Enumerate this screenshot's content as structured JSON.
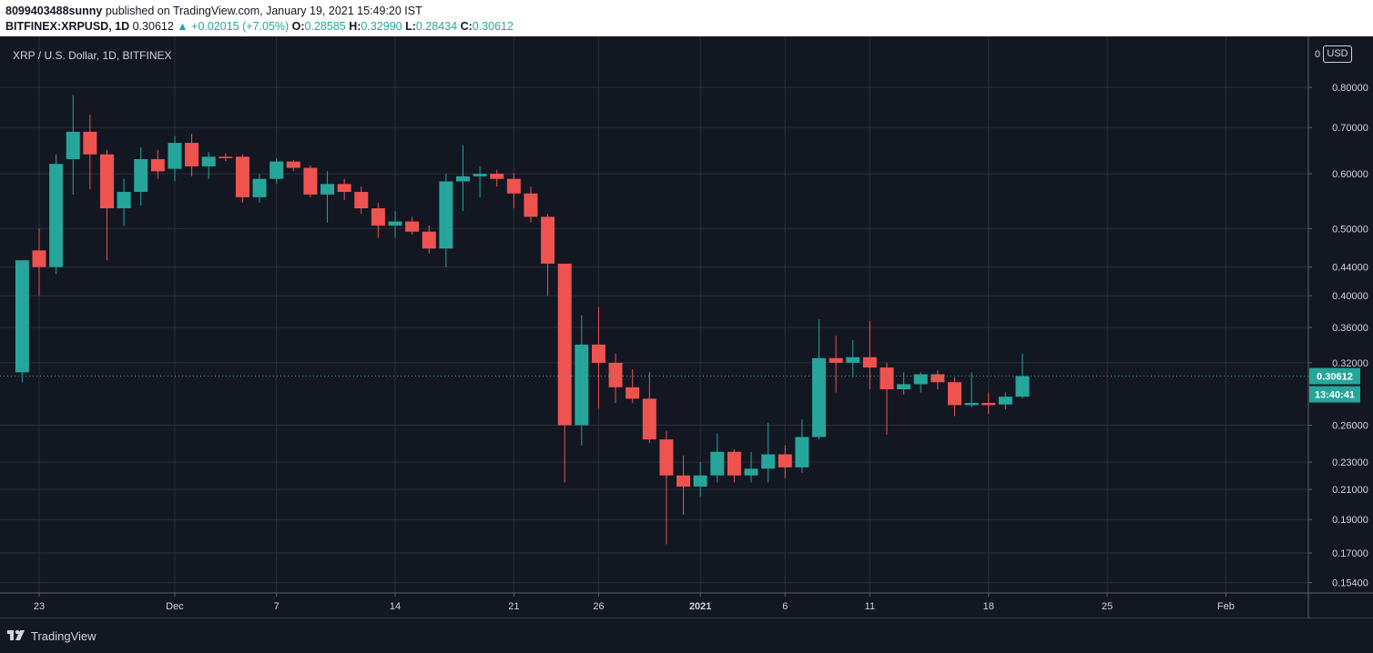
{
  "header": {
    "author": "8099403488sunny",
    "published_text": " published on TradingView.com, January 19, 2021 15:49:20 IST",
    "symbol": "BITFINEX:XRPUSD, 1D",
    "last": "0.30612",
    "change": "▲ +0.02015 (+7.05%)",
    "o_label": "O:",
    "o": "0.28585",
    "h_label": "H:",
    "h": "0.32990",
    "l_label": "L:",
    "l": "0.28434",
    "c_label": "C:",
    "c": "0.30612"
  },
  "legend": "XRP / U.S. Dollar, 1D, BITFINEX",
  "currency_button": "USD",
  "price_label": "0.30612",
  "countdown_label": "13:40:41",
  "footer": {
    "brand": "TradingView"
  },
  "colors": {
    "up": "#26a69a",
    "down": "#ef5350",
    "background": "#131722",
    "grid": "#2a2e39",
    "text": "#d1d4dc"
  },
  "chart_data": {
    "type": "candlestick",
    "title": "XRP / U.S. Dollar, 1D, BITFINEX",
    "y_scale": "log",
    "y_ticks": [
      "0.80000",
      "0.70000",
      "0.60000",
      "0.50000",
      "0.44000",
      "0.40000",
      "0.36000",
      "0.32000",
      "0.26000",
      "0.23000",
      "0.21000",
      "0.19000",
      "0.17000",
      "0.15400"
    ],
    "x_ticks": [
      "23",
      "Dec",
      "7",
      "14",
      "21",
      "26",
      "2021",
      "6",
      "11",
      "18",
      "25",
      "Feb"
    ],
    "grid": true,
    "current_price": 0.30612,
    "candles": [
      {
        "date": "2020-11-22",
        "open": 0.31,
        "high": 0.45,
        "low": 0.3,
        "close": 0.45
      },
      {
        "date": "2020-11-23",
        "open": 0.465,
        "high": 0.5,
        "low": 0.4,
        "close": 0.44
      },
      {
        "date": "2020-11-24",
        "open": 0.44,
        "high": 0.64,
        "low": 0.43,
        "close": 0.62
      },
      {
        "date": "2020-11-25",
        "open": 0.63,
        "high": 0.78,
        "low": 0.56,
        "close": 0.69
      },
      {
        "date": "2020-11-26",
        "open": 0.69,
        "high": 0.73,
        "low": 0.57,
        "close": 0.64
      },
      {
        "date": "2020-11-27",
        "open": 0.64,
        "high": 0.65,
        "low": 0.45,
        "close": 0.535
      },
      {
        "date": "2020-11-28",
        "open": 0.535,
        "high": 0.59,
        "low": 0.505,
        "close": 0.565
      },
      {
        "date": "2020-11-29",
        "open": 0.565,
        "high": 0.655,
        "low": 0.54,
        "close": 0.63
      },
      {
        "date": "2020-11-30",
        "open": 0.63,
        "high": 0.65,
        "low": 0.59,
        "close": 0.605
      },
      {
        "date": "2020-12-01",
        "open": 0.61,
        "high": 0.68,
        "low": 0.585,
        "close": 0.665
      },
      {
        "date": "2020-12-02",
        "open": 0.665,
        "high": 0.685,
        "low": 0.595,
        "close": 0.615
      },
      {
        "date": "2020-12-03",
        "open": 0.615,
        "high": 0.645,
        "low": 0.59,
        "close": 0.635
      },
      {
        "date": "2020-12-04",
        "open": 0.635,
        "high": 0.643,
        "low": 0.626,
        "close": 0.632
      },
      {
        "date": "2020-12-05",
        "open": 0.635,
        "high": 0.64,
        "low": 0.545,
        "close": 0.555
      },
      {
        "date": "2020-12-06",
        "open": 0.555,
        "high": 0.6,
        "low": 0.545,
        "close": 0.59
      },
      {
        "date": "2020-12-07",
        "open": 0.59,
        "high": 0.632,
        "low": 0.58,
        "close": 0.625
      },
      {
        "date": "2020-12-08",
        "open": 0.625,
        "high": 0.628,
        "low": 0.605,
        "close": 0.612
      },
      {
        "date": "2020-12-09",
        "open": 0.612,
        "high": 0.617,
        "low": 0.555,
        "close": 0.56
      },
      {
        "date": "2020-12-10",
        "open": 0.56,
        "high": 0.605,
        "low": 0.51,
        "close": 0.58
      },
      {
        "date": "2020-12-11",
        "open": 0.58,
        "high": 0.59,
        "low": 0.55,
        "close": 0.565
      },
      {
        "date": "2020-12-12",
        "open": 0.565,
        "high": 0.575,
        "low": 0.525,
        "close": 0.535
      },
      {
        "date": "2020-12-13",
        "open": 0.535,
        "high": 0.545,
        "low": 0.485,
        "close": 0.505
      },
      {
        "date": "2020-12-14",
        "open": 0.505,
        "high": 0.53,
        "low": 0.485,
        "close": 0.512
      },
      {
        "date": "2020-12-15",
        "open": 0.512,
        "high": 0.52,
        "low": 0.49,
        "close": 0.495
      },
      {
        "date": "2020-12-16",
        "open": 0.495,
        "high": 0.505,
        "low": 0.46,
        "close": 0.468
      },
      {
        "date": "2020-12-17",
        "open": 0.468,
        "high": 0.6,
        "low": 0.44,
        "close": 0.585
      },
      {
        "date": "2020-12-18",
        "open": 0.585,
        "high": 0.66,
        "low": 0.53,
        "close": 0.595
      },
      {
        "date": "2020-12-19",
        "open": 0.595,
        "high": 0.615,
        "low": 0.555,
        "close": 0.6
      },
      {
        "date": "2020-12-20",
        "open": 0.6,
        "high": 0.608,
        "low": 0.575,
        "close": 0.59
      },
      {
        "date": "2020-12-21",
        "open": 0.59,
        "high": 0.602,
        "low": 0.535,
        "close": 0.562
      },
      {
        "date": "2020-12-22",
        "open": 0.562,
        "high": 0.575,
        "low": 0.51,
        "close": 0.52
      },
      {
        "date": "2020-12-23",
        "open": 0.52,
        "high": 0.525,
        "low": 0.4,
        "close": 0.445
      },
      {
        "date": "2020-12-24",
        "open": 0.445,
        "high": 0.445,
        "low": 0.215,
        "close": 0.26
      },
      {
        "date": "2020-12-25",
        "open": 0.26,
        "high": 0.375,
        "low": 0.243,
        "close": 0.34
      },
      {
        "date": "2020-12-26",
        "open": 0.34,
        "high": 0.385,
        "low": 0.275,
        "close": 0.32
      },
      {
        "date": "2020-12-27",
        "open": 0.32,
        "high": 0.33,
        "low": 0.28,
        "close": 0.295
      },
      {
        "date": "2020-12-28",
        "open": 0.295,
        "high": 0.313,
        "low": 0.28,
        "close": 0.284
      },
      {
        "date": "2020-12-29",
        "open": 0.284,
        "high": 0.31,
        "low": 0.245,
        "close": 0.248
      },
      {
        "date": "2020-12-30",
        "open": 0.248,
        "high": 0.255,
        "low": 0.175,
        "close": 0.22
      },
      {
        "date": "2020-12-31",
        "open": 0.22,
        "high": 0.235,
        "low": 0.193,
        "close": 0.212
      },
      {
        "date": "2021-01-01",
        "open": 0.212,
        "high": 0.23,
        "low": 0.205,
        "close": 0.22
      },
      {
        "date": "2021-01-02",
        "open": 0.22,
        "high": 0.253,
        "low": 0.215,
        "close": 0.238
      },
      {
        "date": "2021-01-03",
        "open": 0.238,
        "high": 0.24,
        "low": 0.215,
        "close": 0.22
      },
      {
        "date": "2021-01-04",
        "open": 0.22,
        "high": 0.238,
        "low": 0.215,
        "close": 0.225
      },
      {
        "date": "2021-01-05",
        "open": 0.225,
        "high": 0.262,
        "low": 0.215,
        "close": 0.236
      },
      {
        "date": "2021-01-06",
        "open": 0.236,
        "high": 0.243,
        "low": 0.218,
        "close": 0.226
      },
      {
        "date": "2021-01-07",
        "open": 0.226,
        "high": 0.265,
        "low": 0.222,
        "close": 0.25
      },
      {
        "date": "2021-01-08",
        "open": 0.25,
        "high": 0.37,
        "low": 0.248,
        "close": 0.325
      },
      {
        "date": "2021-01-09",
        "open": 0.325,
        "high": 0.35,
        "low": 0.29,
        "close": 0.32
      },
      {
        "date": "2021-01-10",
        "open": 0.32,
        "high": 0.345,
        "low": 0.305,
        "close": 0.326
      },
      {
        "date": "2021-01-11",
        "open": 0.326,
        "high": 0.368,
        "low": 0.293,
        "close": 0.315
      },
      {
        "date": "2021-01-12",
        "open": 0.315,
        "high": 0.32,
        "low": 0.252,
        "close": 0.293
      },
      {
        "date": "2021-01-13",
        "open": 0.293,
        "high": 0.31,
        "low": 0.288,
        "close": 0.298
      },
      {
        "date": "2021-01-14",
        "open": 0.298,
        "high": 0.31,
        "low": 0.29,
        "close": 0.308
      },
      {
        "date": "2021-01-15",
        "open": 0.308,
        "high": 0.312,
        "low": 0.293,
        "close": 0.3
      },
      {
        "date": "2021-01-16",
        "open": 0.3,
        "high": 0.305,
        "low": 0.268,
        "close": 0.278
      },
      {
        "date": "2021-01-17",
        "open": 0.278,
        "high": 0.31,
        "low": 0.276,
        "close": 0.28
      },
      {
        "date": "2021-01-18",
        "open": 0.28,
        "high": 0.29,
        "low": 0.27,
        "close": 0.278
      },
      {
        "date": "2021-01-19",
        "open": 0.2786,
        "high": 0.29,
        "low": 0.274,
        "close": 0.2859
      },
      {
        "date": "2021-01-20",
        "open": 0.28585,
        "high": 0.3299,
        "low": 0.28434,
        "close": 0.30612
      }
    ]
  }
}
